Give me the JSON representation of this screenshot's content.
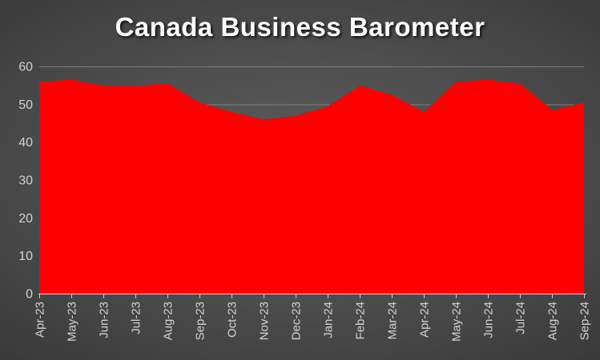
{
  "title": "Canada Business Barometer",
  "chart_data": {
    "type": "area",
    "title": "Canada Business Barometer",
    "categories": [
      "Apr-23",
      "May-23",
      "Jun-23",
      "Jul-23",
      "Aug-23",
      "Sep-23",
      "Oct-23",
      "Nov-23",
      "Dec-23",
      "Jan-24",
      "Feb-24",
      "Mar-24",
      "Apr-24",
      "May-24",
      "Jun-24",
      "Jul-24",
      "Aug-24",
      "Sep-24"
    ],
    "values": [
      56,
      56.5,
      55,
      55,
      55.5,
      50.5,
      48,
      46,
      47,
      49.5,
      55,
      52.5,
      48,
      56,
      56.5,
      55.5,
      48.5,
      50.5
    ],
    "xlabel": "",
    "ylabel": "",
    "ylim": [
      0,
      60
    ],
    "yticks": [
      0,
      10,
      20,
      30,
      40,
      50,
      60
    ],
    "grid": true,
    "legend": false,
    "x_label_rotation": -90,
    "series_color": "#ff0000"
  },
  "colors": {
    "series_fill": "#ff0000",
    "grid_line": "#7f7f7f",
    "axis_line": "#d9d9d9",
    "tick_mark": "#c8c8c8",
    "axis_label": "#d2d2d2",
    "title_text": "#ffffff",
    "background_center": "#5c5c5c",
    "background_edge": "#1d1d1d"
  }
}
